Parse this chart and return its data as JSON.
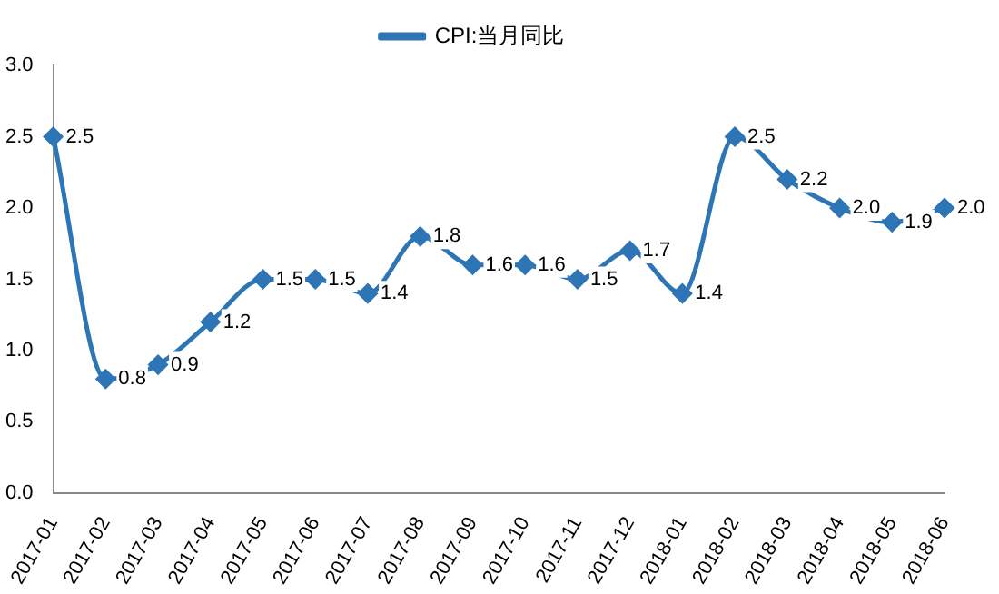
{
  "chart_data": {
    "type": "line",
    "categories": [
      "2017-01",
      "2017-02",
      "2017-03",
      "2017-04",
      "2017-05",
      "2017-06",
      "2017-07",
      "2017-08",
      "2017-09",
      "2017-10",
      "2017-11",
      "2017-12",
      "2018-01",
      "2018-02",
      "2018-03",
      "2018-04",
      "2018-05",
      "2018-06"
    ],
    "series": [
      {
        "name": "CPI:当月同比",
        "color": "#2e75b6",
        "values": [
          2.5,
          0.8,
          0.9,
          1.2,
          1.5,
          1.5,
          1.4,
          1.8,
          1.6,
          1.6,
          1.5,
          1.7,
          1.4,
          2.5,
          2.2,
          2.0,
          1.9,
          2.0
        ],
        "value_labels": [
          "2.5",
          "0.8",
          "0.9",
          "1.2",
          "1.5",
          "1.5",
          "1.4",
          "1.8",
          "1.6",
          "1.6",
          "1.5",
          "1.7",
          "1.4",
          "2.5",
          "2.2",
          "2.0",
          "1.9",
          "2.0"
        ]
      }
    ],
    "ylim": [
      0,
      3
    ],
    "yticks": [
      {
        "value": 0,
        "label": "0.0"
      },
      0.5,
      {
        "value": 1,
        "label": "1.0"
      },
      1.5,
      {
        "value": 2,
        "label": "2.0"
      },
      2.5,
      {
        "value": 3,
        "label": "3.0"
      }
    ],
    "grid": false,
    "legend": "top",
    "marker": "diamond",
    "line_style": "solid"
  }
}
